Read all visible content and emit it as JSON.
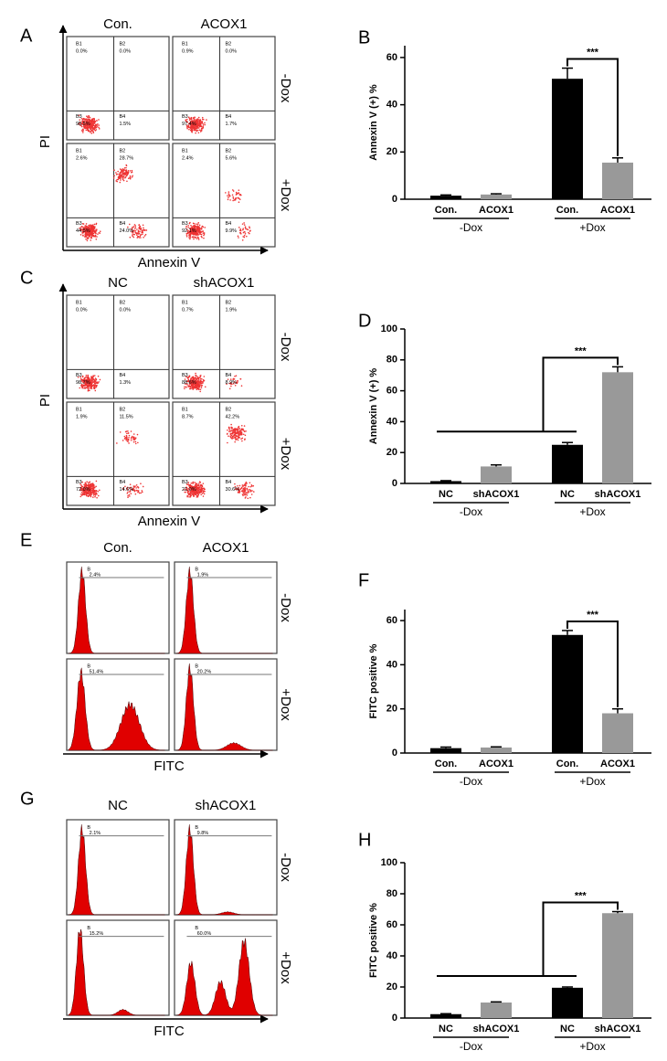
{
  "chart_data": [
    {
      "type": "bar",
      "panel": "B",
      "ylabel": "Annexin V (+) %",
      "categories": [
        "Con.",
        "ACOX1",
        "Con.",
        "ACOX1"
      ],
      "groups": [
        "-Dox",
        "+Dox"
      ],
      "values": [
        1.5,
        2,
        51,
        15.5
      ],
      "errors": [
        0.3,
        0.3,
        4.5,
        2
      ],
      "colors": [
        "#000000",
        "#999999",
        "#000000",
        "#999999"
      ],
      "ylim": [
        0,
        65
      ],
      "yticks": [
        0,
        20,
        40,
        60
      ],
      "annotation": "***",
      "comparison_from": [
        2
      ],
      "comparison_to": 3
    },
    {
      "type": "bar",
      "panel": "D",
      "ylabel": "Annexin V (+) %",
      "categories": [
        "NC",
        "shACOX1",
        "NC",
        "shACOX1"
      ],
      "groups": [
        "-Dox",
        "+Dox"
      ],
      "values": [
        1.5,
        11,
        25,
        72
      ],
      "errors": [
        0.3,
        1,
        1.5,
        3.5
      ],
      "colors": [
        "#000000",
        "#999999",
        "#000000",
        "#999999"
      ],
      "ylim": [
        0,
        100
      ],
      "yticks": [
        0,
        20,
        40,
        60,
        80,
        100
      ],
      "annotation": "***",
      "comparison_from": [
        0,
        1,
        2
      ],
      "comparison_to": 3
    },
    {
      "type": "bar",
      "panel": "F",
      "ylabel": "FITC positive %",
      "categories": [
        "Con.",
        "ACOX1",
        "Con.",
        "ACOX1"
      ],
      "groups": [
        "-Dox",
        "+Dox"
      ],
      "values": [
        2.2,
        2.5,
        53.5,
        18
      ],
      "errors": [
        0.5,
        0.3,
        2,
        2
      ],
      "colors": [
        "#000000",
        "#999999",
        "#000000",
        "#999999"
      ],
      "ylim": [
        0,
        65
      ],
      "yticks": [
        0,
        20,
        40,
        60
      ],
      "annotation": "***",
      "comparison_from": [
        2
      ],
      "comparison_to": 3
    },
    {
      "type": "bar",
      "panel": "H",
      "ylabel": "FITC positive %",
      "categories": [
        "NC",
        "shACOX1",
        "NC",
        "shACOX1"
      ],
      "groups": [
        "-Dox",
        "+Dox"
      ],
      "values": [
        2.5,
        10,
        19.5,
        67.5
      ],
      "errors": [
        0.3,
        0.4,
        0.5,
        1
      ],
      "colors": [
        "#000000",
        "#999999",
        "#000000",
        "#999999"
      ],
      "ylim": [
        0,
        100
      ],
      "yticks": [
        0,
        20,
        40,
        60,
        80,
        100
      ],
      "annotation": "***",
      "comparison_from": [
        0,
        1,
        2
      ],
      "comparison_to": 3
    }
  ],
  "flow_panels": [
    {
      "kind": "scatter",
      "label": "A",
      "columns": [
        "Con.",
        "ACOX1"
      ],
      "rows": [
        "-Dox",
        "+Dox"
      ],
      "ylabel": "PI",
      "xlabel": "Annexin V",
      "plots": [
        [
          [
            "B1",
            "0.0%"
          ],
          [
            "B2",
            "0.0%"
          ],
          [
            "B3",
            "98.5%"
          ],
          [
            "B4",
            "1.5%"
          ]
        ],
        [
          [
            "B1",
            "0.9%"
          ],
          [
            "B2",
            "0.0%"
          ],
          [
            "B3",
            "97.4%"
          ],
          [
            "B4",
            "1.7%"
          ]
        ],
        [
          [
            "B1",
            "2.6%"
          ],
          [
            "B2",
            "28.7%"
          ],
          [
            "B3",
            "44.5%"
          ],
          [
            "B4",
            "24.0%"
          ]
        ],
        [
          [
            "B1",
            "2.4%"
          ],
          [
            "B2",
            "5.6%"
          ],
          [
            "B3",
            "92.1%"
          ],
          [
            "B4",
            "9.9%"
          ]
        ]
      ]
    },
    {
      "kind": "scatter",
      "label": "C",
      "columns": [
        "NC",
        "shACOX1"
      ],
      "rows": [
        "-Dox",
        "+Dox"
      ],
      "ylabel": "PI",
      "xlabel": "Annexin V",
      "plots": [
        [
          [
            "B1",
            "0.0%"
          ],
          [
            "B2",
            "0.0%"
          ],
          [
            "B3",
            "98.7%"
          ],
          [
            "B4",
            "1.3%"
          ]
        ],
        [
          [
            "B1",
            "0.7%"
          ],
          [
            "B2",
            "1.9%"
          ],
          [
            "B3",
            "88.6%"
          ],
          [
            "B4",
            "8.9%"
          ]
        ],
        [
          [
            "B1",
            "1.9%"
          ],
          [
            "B2",
            "11.5%"
          ],
          [
            "B3",
            "72.0%"
          ],
          [
            "B4",
            "14.6%"
          ]
        ],
        [
          [
            "B1",
            "8.7%"
          ],
          [
            "B2",
            "42.2%"
          ],
          [
            "B3",
            "21.0%"
          ],
          [
            "B4",
            "30.6%"
          ]
        ]
      ]
    },
    {
      "kind": "histogram",
      "label": "E",
      "columns": [
        "Con.",
        "ACOX1"
      ],
      "rows": [
        "-Dox",
        "+Dox"
      ],
      "xlabel": "FITC",
      "plots": [
        [
          [
            "B",
            "2.4%"
          ]
        ],
        [
          [
            "B",
            "1.9%"
          ]
        ],
        [
          [
            "B",
            "51.4%"
          ]
        ],
        [
          [
            "B",
            "20.2%"
          ]
        ]
      ]
    },
    {
      "kind": "histogram",
      "label": "G",
      "columns": [
        "NC",
        "shACOX1"
      ],
      "rows": [
        "-Dox",
        "+Dox"
      ],
      "xlabel": "FITC",
      "plots": [
        [
          [
            "B",
            "2.1%"
          ]
        ],
        [
          [
            "B",
            "9.8%"
          ]
        ],
        [
          [
            "B",
            "15.2%"
          ]
        ],
        [
          [
            "B",
            "60.0%"
          ]
        ]
      ]
    }
  ]
}
